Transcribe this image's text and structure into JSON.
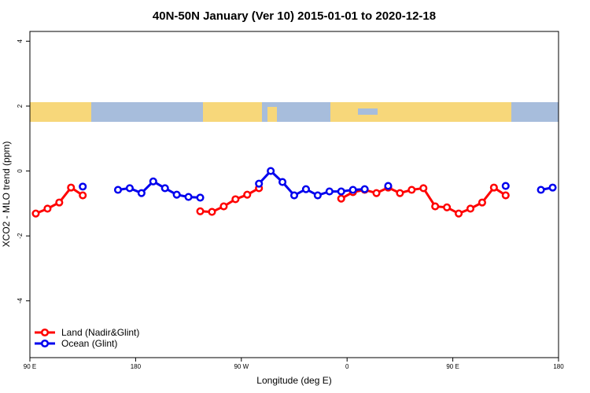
{
  "chart_data": {
    "type": "line",
    "title": "40N-50N January (Ver 10)   2015-01-01 to 2020-12-18",
    "x_label": "Longitude (deg E)",
    "y_label": "XCO2 - MLO trend (ppm)",
    "x": [
      95,
      105,
      115,
      125,
      135,
      145,
      155,
      165,
      175,
      185,
      195,
      205,
      215,
      225,
      235,
      245,
      255,
      265,
      275,
      285,
      295,
      305,
      315,
      325,
      335,
      345,
      355,
      365,
      375,
      385,
      395,
      405,
      415,
      425,
      435,
      445,
      455,
      465,
      475,
      485,
      495,
      505,
      515,
      525,
      535
    ],
    "series": [
      {
        "name": "Land (Nadir&Glint)",
        "color": "#ff0000",
        "values": [
          -1.31,
          -1.16,
          -0.97,
          -0.51,
          -0.75,
          null,
          null,
          null,
          null,
          null,
          null,
          null,
          null,
          null,
          -1.24,
          -1.26,
          -1.09,
          -0.87,
          -0.73,
          -0.53,
          null,
          null,
          null,
          null,
          null,
          null,
          -0.85,
          -0.65,
          -0.58,
          -0.68,
          -0.51,
          -0.68,
          -0.58,
          -0.53,
          -1.09,
          -1.12,
          -1.31,
          -1.16,
          -0.97,
          -0.51,
          -0.75,
          null,
          null,
          null,
          null
        ]
      },
      {
        "name": "Ocean (Glint)",
        "color": "#0000ee",
        "values": [
          null,
          null,
          null,
          null,
          -0.48,
          null,
          null,
          -0.58,
          -0.53,
          -0.68,
          -0.32,
          -0.53,
          -0.73,
          -0.8,
          -0.82,
          null,
          null,
          null,
          null,
          -0.39,
          0.0,
          -0.34,
          -0.75,
          -0.56,
          -0.75,
          -0.63,
          -0.63,
          -0.58,
          -0.56,
          null,
          -0.46,
          null,
          null,
          null,
          null,
          null,
          null,
          null,
          null,
          null,
          -0.46,
          null,
          null,
          -0.58,
          -0.51
        ]
      }
    ],
    "xlim": [
      90,
      540
    ],
    "xticks": [
      {
        "value": 90,
        "label": "90 E"
      },
      180,
      {
        "value": 270,
        "label": "90 W"
      },
      {
        "value": 360,
        "label": "0"
      },
      {
        "value": 450,
        "label": "90 E"
      },
      {
        "value": 540,
        "label": "180"
      }
    ],
    "ylim": [
      -5.75,
      4.3
    ],
    "yticks": [
      4,
      2,
      0,
      -2,
      -4
    ],
    "legend": "bottom-left"
  }
}
